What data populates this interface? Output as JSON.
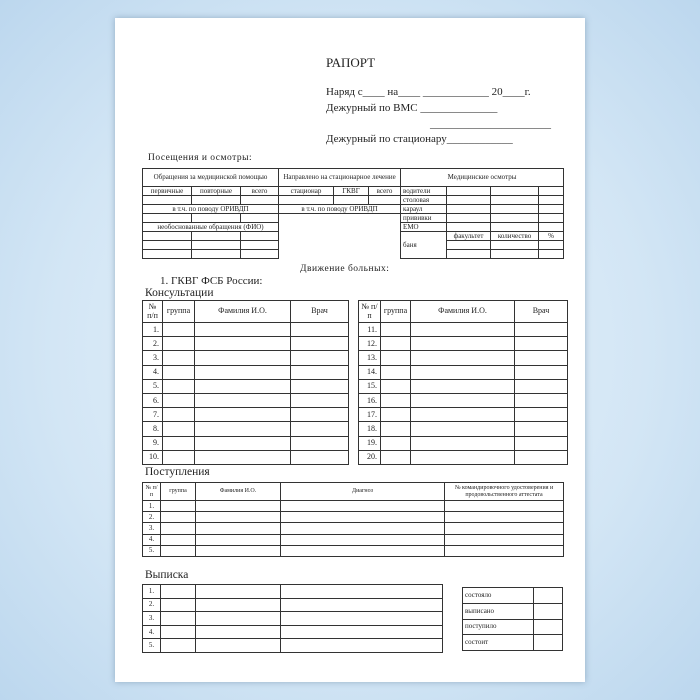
{
  "title": "РАПОРТ",
  "header_lines": {
    "duty": "Наряд с____ на____ ____________ 20____г.",
    "vms": "Дежурный по ВМС ______________",
    "blank": "______________________",
    "hospital": "Дежурный по стационару____________"
  },
  "visits": {
    "heading": "Посещения и осмотры:",
    "col_appeals": "Обращения за медицинской помощью",
    "col_referred": "Направлено на стационарное лечение",
    "col_exams": "Медицинские осмотры",
    "sub_appeals": [
      "первичные",
      "повторные",
      "всего"
    ],
    "sub_referred": [
      "стационар",
      "ГКВГ",
      "всего"
    ],
    "incl_orvi_1": "в т.ч. по поводу ОРИВДП",
    "incl_orvi_2": "в т.ч. по поводу ОРИВДП",
    "unfounded": "необоснованные обращения (ФИО)",
    "exam_rows": [
      "водители",
      "столовая",
      "караул",
      "прививки",
      "ЕМО"
    ],
    "bath": "баня",
    "bath_cols": [
      "факультет",
      "количество",
      "%"
    ]
  },
  "movement": {
    "heading": "Движение больных:",
    "hospital": "1. ГКВГ ФСБ России:",
    "consult_title": "Консультации",
    "consult_headers": [
      "№ п/п",
      "группа",
      "Фамилия И.О.",
      "Врач"
    ],
    "consult_left_nums": [
      "1.",
      "2.",
      "3.",
      "4.",
      "5.",
      "6.",
      "7.",
      "8.",
      "9.",
      "10."
    ],
    "consult_right_nums": [
      "11.",
      "12.",
      "13.",
      "14.",
      "15.",
      "16.",
      "17.",
      "18.",
      "19.",
      "20."
    ],
    "admissions_title": "Поступления",
    "admissions_headers": [
      "№ п/п",
      "группа",
      "Фамилия И.О.",
      "Диагноз",
      "№ командировочного удостоверения и продовольственного аттестата"
    ],
    "admissions_nums": [
      "1.",
      "2.",
      "3.",
      "4.",
      "5."
    ],
    "discharge_title": "Выписка",
    "discharge_nums": [
      "1.",
      "2.",
      "3.",
      "4.",
      "5."
    ],
    "summary": [
      "состояло",
      "выписано",
      "поступило",
      "состоит"
    ]
  }
}
